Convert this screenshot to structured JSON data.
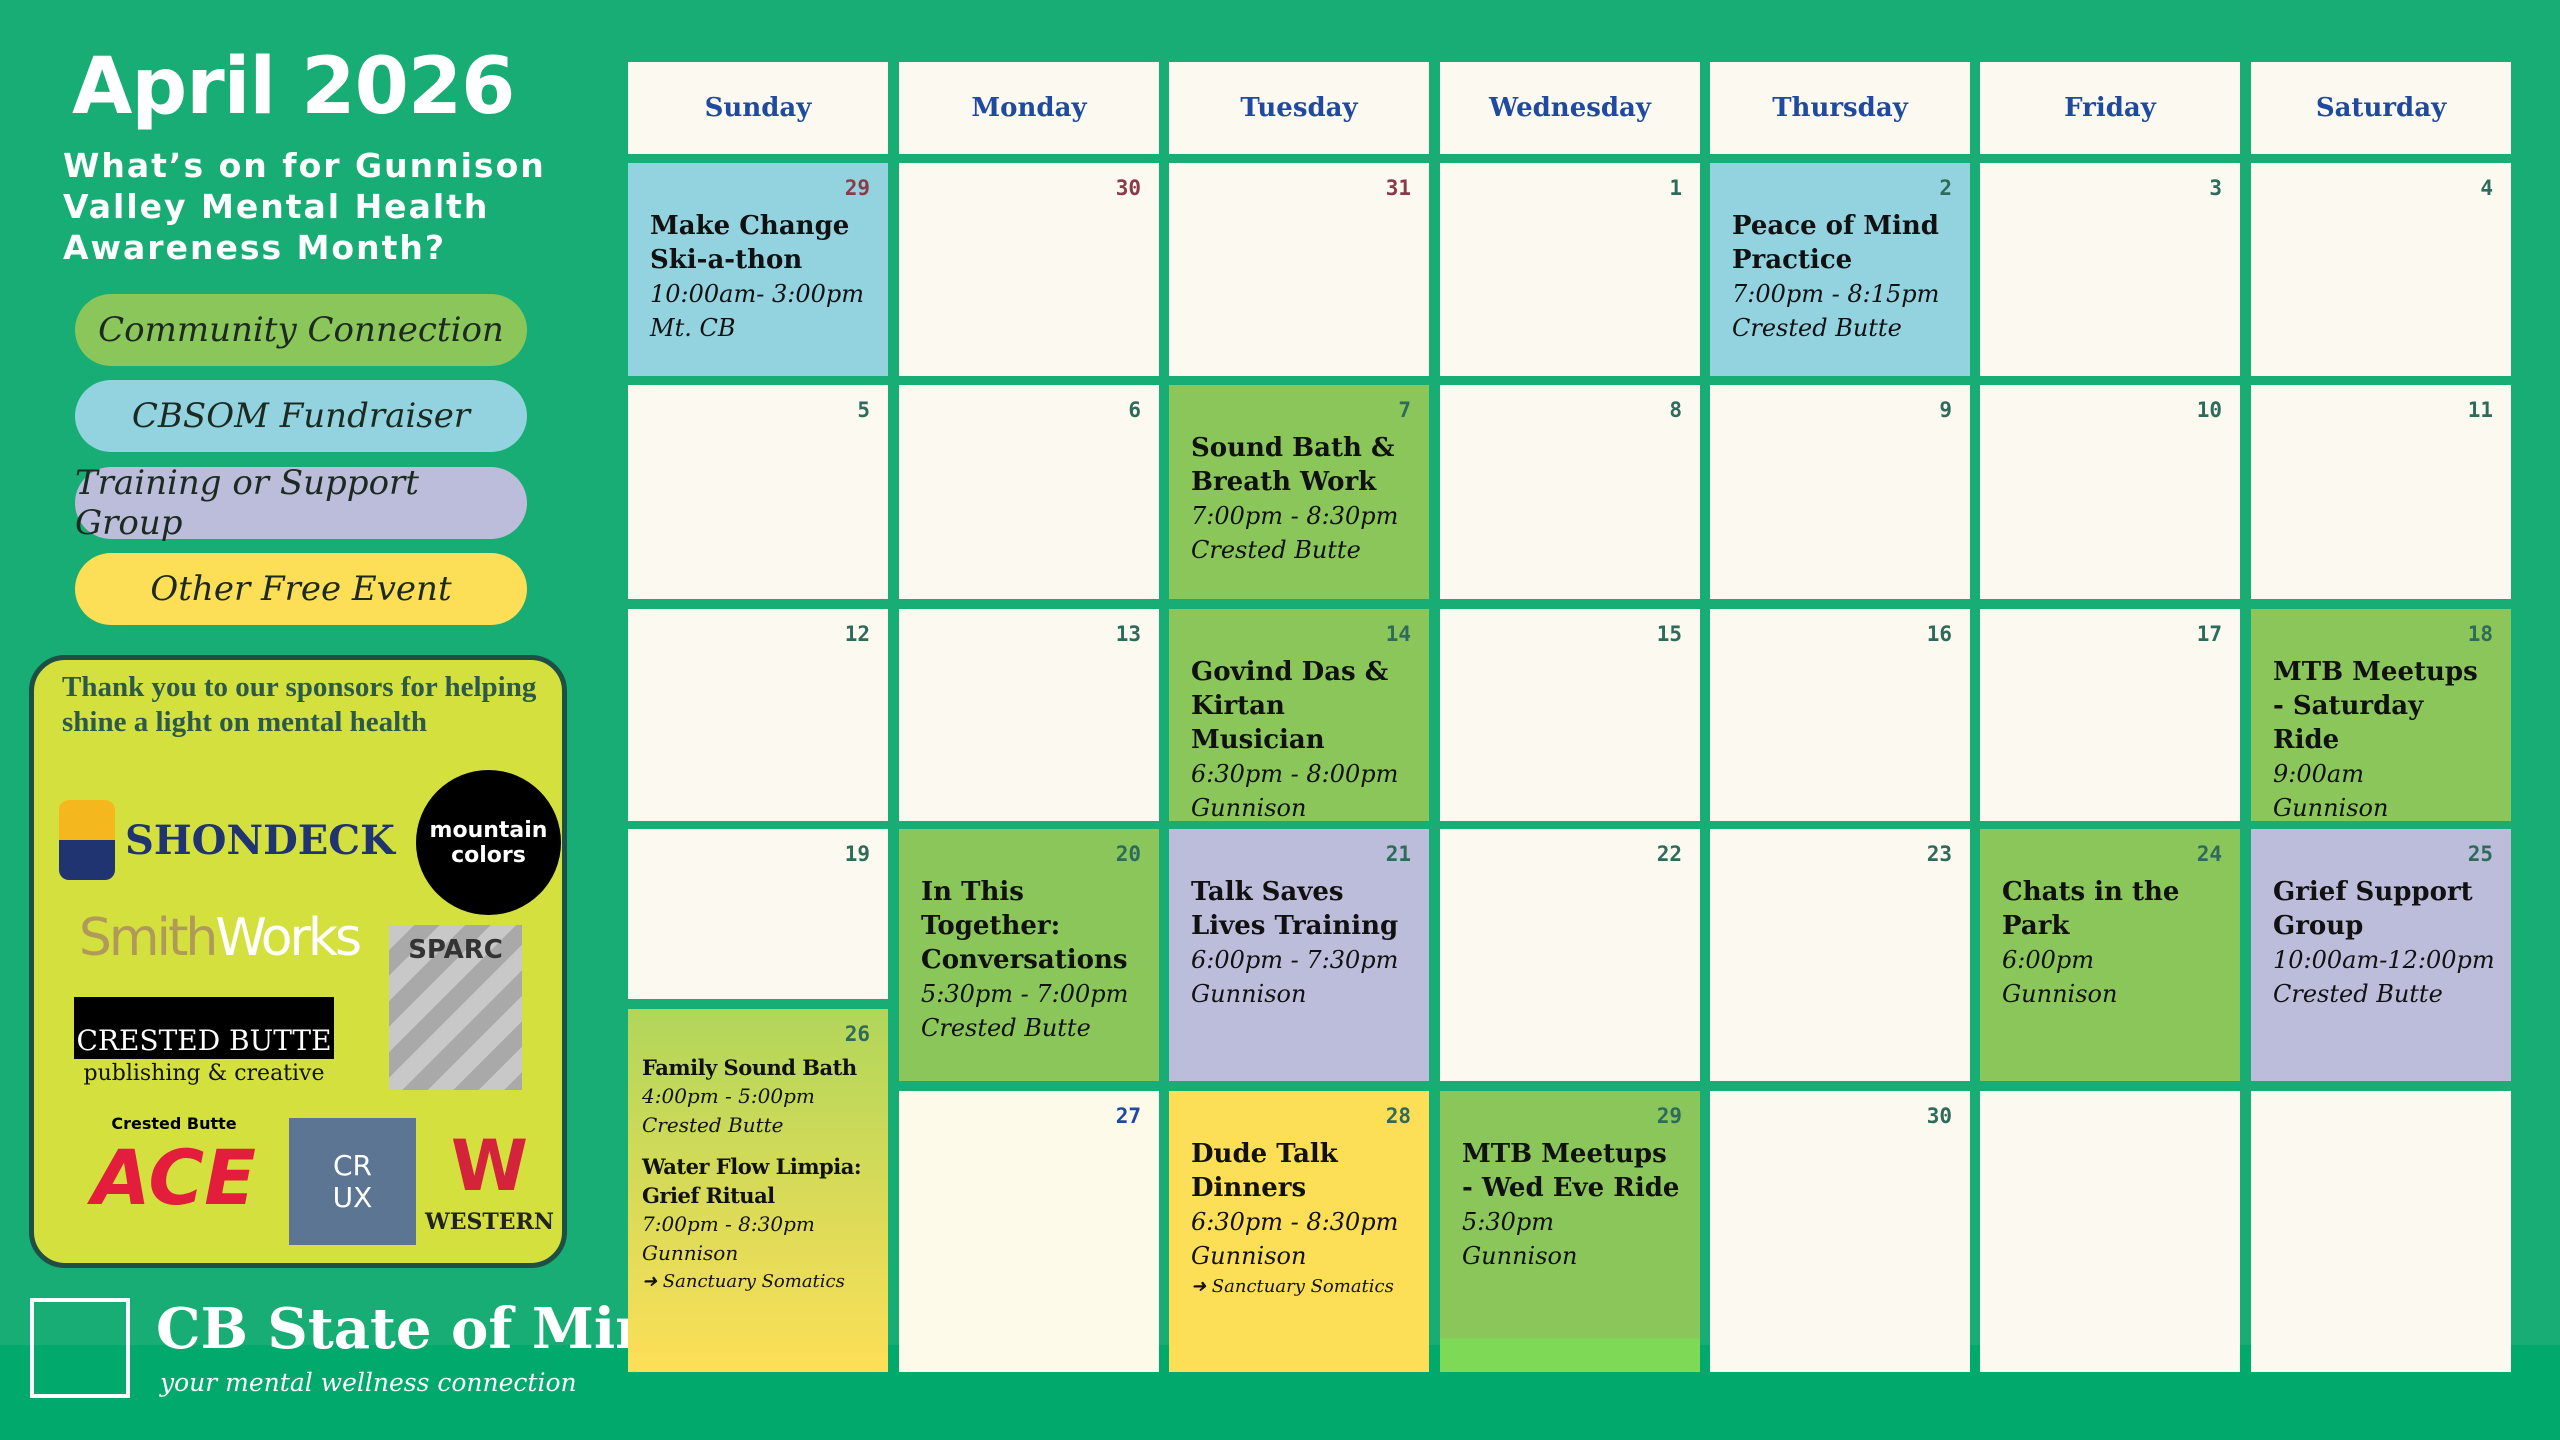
{
  "header": {
    "title": "April 2026",
    "subtitle": "What’s on for Gunnison Valley Mental Health Awareness Month?"
  },
  "legend": [
    {
      "label": "Community Connection",
      "color": "#8bc65a"
    },
    {
      "label": "CBSOM Fundraiser",
      "color": "#93d3e0"
    },
    {
      "label": "Training or Support Group",
      "color": "#bcbdda"
    },
    {
      "label": "Other Free Event",
      "color": "#fddf57"
    }
  ],
  "sponsors": {
    "title": "Thank you to our sponsors for helping shine a light on mental health",
    "logos": [
      "SHONDECK Financial Services & Insurance",
      "mountain colors CRESTED BUTTE",
      "SmithWorks NATURAL HOMES",
      "SPARC",
      "CRESTED BUTTE publishing & creative",
      "Crested Butte ACE",
      "CRUX PILATES",
      "WESTERN COLORADO UNIVERSITY"
    ]
  },
  "footer": {
    "name": "CB State of Mind",
    "tagline": "your mental wellness connection"
  },
  "calendar": {
    "weekdays": [
      "Sunday",
      "Monday",
      "Tuesday",
      "Wednesday",
      "Thursday",
      "Friday",
      "Saturday"
    ],
    "colors": {
      "blank": "#fbf9f0",
      "community": "#8bc65a",
      "fundraiser": "#93d3e0",
      "training": "#bcbdda",
      "other": "#fddf57"
    },
    "cells": [
      {
        "day": "29",
        "type": "fundraiser",
        "prev": true,
        "events": [
          {
            "title": "Make Change Ski-a-thon",
            "lines": [
              "10:00am- 3:00pm",
              "Mt. CB"
            ]
          }
        ]
      },
      {
        "day": "30",
        "type": "blank",
        "prev": true,
        "events": []
      },
      {
        "day": "31",
        "type": "blank",
        "prev": true,
        "events": []
      },
      {
        "day": "1",
        "type": "blank",
        "events": []
      },
      {
        "day": "2",
        "type": "fundraiser",
        "events": [
          {
            "title": "Peace of Mind Practice",
            "lines": [
              "7:00pm - 8:15pm",
              "Crested Butte"
            ]
          }
        ]
      },
      {
        "day": "3",
        "type": "blank",
        "events": []
      },
      {
        "day": "4",
        "type": "blank",
        "events": []
      },
      {
        "day": "5",
        "type": "blank",
        "events": []
      },
      {
        "day": "6",
        "type": "blank",
        "events": []
      },
      {
        "day": "7",
        "type": "community",
        "events": [
          {
            "title": "Sound Bath & Breath Work",
            "lines": [
              "7:00pm - 8:30pm",
              "Crested Butte"
            ]
          }
        ]
      },
      {
        "day": "8",
        "type": "blank",
        "events": []
      },
      {
        "day": "9",
        "type": "blank",
        "events": []
      },
      {
        "day": "10",
        "type": "blank",
        "events": []
      },
      {
        "day": "11",
        "type": "blank",
        "events": []
      },
      {
        "day": "12",
        "type": "blank",
        "events": []
      },
      {
        "day": "13",
        "type": "blank",
        "events": []
      },
      {
        "day": "14",
        "type": "community",
        "events": [
          {
            "title": "Govind Das & Kirtan Musician",
            "lines": [
              "6:30pm - 8:00pm",
              "Gunnison"
            ]
          }
        ]
      },
      {
        "day": "15",
        "type": "blank",
        "events": []
      },
      {
        "day": "16",
        "type": "blank",
        "events": []
      },
      {
        "day": "17",
        "type": "blank",
        "events": []
      },
      {
        "day": "18",
        "type": "community",
        "events": [
          {
            "title": "MTB Meetups - Saturday Ride",
            "lines": [
              "9:00am",
              "Gunnison"
            ]
          }
        ]
      },
      {
        "day": "19",
        "type": "blank",
        "events": []
      },
      {
        "day": "20",
        "type": "community",
        "events": [
          {
            "title": "In This Together: Conversations",
            "lines": [
              "5:30pm - 7:00pm",
              "Crested Butte"
            ]
          }
        ]
      },
      {
        "day": "21",
        "type": "training",
        "events": [
          {
            "title": "Talk Saves Lives Training",
            "lines": [
              "6:00pm - 7:30pm",
              "Gunnison"
            ]
          }
        ]
      },
      {
        "day": "22",
        "type": "blank",
        "events": []
      },
      {
        "day": "23",
        "type": "blank",
        "events": []
      },
      {
        "day": "24",
        "type": "community",
        "events": [
          {
            "title": "Chats in the Park",
            "lines": [
              "6:00pm",
              "Gunnison"
            ]
          }
        ]
      },
      {
        "day": "25",
        "type": "training",
        "events": [
          {
            "title": "Grief Support Group",
            "lines": [
              "10:00am-12:00pm",
              "Crested Butte"
            ]
          }
        ]
      },
      {
        "day": "26",
        "type": "other",
        "events": [
          {
            "title": "Family Sound Bath",
            "lines": [
              "4:00pm - 5:00pm",
              "Crested Butte"
            ]
          },
          {
            "title": "Water Flow Limpia: Grief Ritual",
            "lines": [
              "7:00pm - 8:30pm",
              "Gunnison"
            ],
            "link": "➜ Sanctuary Somatics"
          }
        ]
      },
      {
        "day": "27",
        "type": "blank",
        "events": []
      },
      {
        "day": "28",
        "type": "other",
        "events": [
          {
            "title": "Dude Talk Dinners",
            "lines": [
              "6:30pm - 8:30pm",
              "Gunnison"
            ],
            "link": "➜ Sanctuary Somatics"
          }
        ]
      },
      {
        "day": "29",
        "type": "community",
        "events": [
          {
            "title": "MTB Meetups - Wed Eve Ride",
            "lines": [
              "5:30pm",
              "Gunnison"
            ]
          }
        ]
      },
      {
        "day": "30",
        "type": "blank",
        "events": []
      },
      {
        "day": "",
        "type": "blank",
        "events": []
      },
      {
        "day": "",
        "type": "blank",
        "events": []
      }
    ]
  }
}
